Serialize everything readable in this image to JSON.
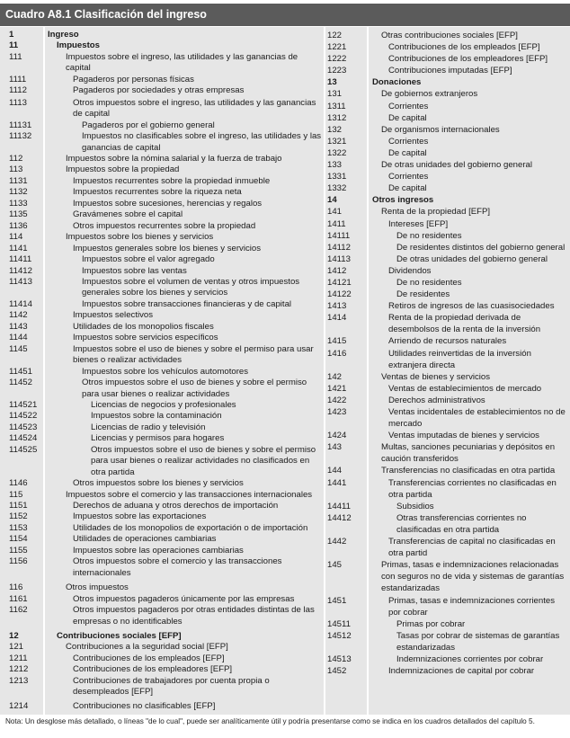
{
  "title": "Cuadro A8.1 Clasificación del ingreso",
  "note": "Nota: Un desglose más detallado, o líneas \"de lo cual\", puede ser analíticamente útil y podría presentarse como se indica en los cuadros detallados del capítulo 5.",
  "colors": {
    "header": "#5b5b5b",
    "body": "#e6e6e6",
    "divider": "#ffffff"
  },
  "left_rows": [
    {
      "code": "1",
      "text": "Ingreso"
    },
    {
      "code": "11",
      "text": "Impuestos"
    },
    {
      "code": "111",
      "text": "Impuestos sobre el ingreso, las utilidades y las ganancias de capital"
    },
    {
      "code": "1111",
      "text": "Pagaderos por personas físicas"
    },
    {
      "code": "1112",
      "text": "Pagaderos por sociedades y otras empresas"
    },
    {
      "code": "1113",
      "text": "Otros impuestos sobre el ingreso, las utilidades y las ganancias de capital"
    },
    {
      "code": "11131",
      "text": "Pagaderos por el gobierno general"
    },
    {
      "code": "11132",
      "text": "Impuestos no clasificables sobre el ingreso, las utilidades y las ganancias de capital"
    },
    {
      "code": "112",
      "text": "Impuestos sobre la nómina salarial y la fuerza de trabajo"
    },
    {
      "code": "113",
      "text": "Impuestos sobre la propiedad"
    },
    {
      "code": "1131",
      "text": "Impuestos recurrentes sobre la propiedad inmueble"
    },
    {
      "code": "1132",
      "text": "Impuestos recurrentes sobre la riqueza neta"
    },
    {
      "code": "1133",
      "text": "Impuestos sobre sucesiones, herencias y regalos"
    },
    {
      "code": "1135",
      "text": "Gravámenes sobre el capital"
    },
    {
      "code": "1136",
      "text": "Otros impuestos recurrentes sobre la propiedad"
    },
    {
      "code": "114",
      "text": "Impuestos sobre los bienes y servicios"
    },
    {
      "code": "1141",
      "text": "Impuestos generales sobre los bienes y servicios"
    },
    {
      "code": "11411",
      "text": "Impuestos sobre el valor agregado"
    },
    {
      "code": "11412",
      "text": "Impuestos sobre las ventas"
    },
    {
      "code": "11413",
      "text": "Impuestos sobre el volumen de ventas y otros impuestos generales sobre los bienes y servicios"
    },
    {
      "code": "11414",
      "text": "Impuestos sobre transacciones financieras y de capital"
    },
    {
      "code": "1142",
      "text": "Impuestos selectivos"
    },
    {
      "code": "1143",
      "text": "Utilidades de los monopolios fiscales"
    },
    {
      "code": "1144",
      "text": "Impuestos sobre servicios específicos"
    },
    {
      "code": "1145",
      "text": "Impuestos sobre el uso de bienes y sobre el permiso para usar bienes o realizar actividades"
    },
    {
      "code": "11451",
      "text": "Impuestos sobre los vehículos automotores"
    },
    {
      "code": "11452",
      "text": "Otros impuestos sobre el uso de bienes y sobre el permiso para usar bienes o realizar actividades"
    },
    {
      "code": "114521",
      "text": "Licencias de negocios y profesionales"
    },
    {
      "code": "114522",
      "text": "Impuestos sobre la contaminación"
    },
    {
      "code": "114523",
      "text": "Licencias de radio y televisión"
    },
    {
      "code": "114524",
      "text": "Licencias y permisos para hogares"
    },
    {
      "code": "114525",
      "text": "Otros impuestos sobre el uso de bienes y sobre el permiso para usar bienes o realizar actividades no clasificados en otra partida"
    },
    {
      "code": "1146",
      "text": "Otros impuestos sobre los bienes y servicios"
    },
    {
      "code": "115",
      "text": "Impuestos sobre el comercio y las transacciones internacionales"
    },
    {
      "code": "1151",
      "text": "Derechos de aduana y otros derechos de importación"
    },
    {
      "code": "1152",
      "text": "Impuestos sobre las exportaciones"
    },
    {
      "code": "1153",
      "text": "Utilidades de los monopolios de exportación o de importación"
    },
    {
      "code": "1154",
      "text": "Utilidades de operaciones cambiarias"
    },
    {
      "code": "1155",
      "text": "Impuestos sobre las operaciones cambiarias"
    },
    {
      "code": "1156",
      "text": "Otros impuestos sobre el comercio y las transacciones internacionales"
    },
    {
      "code": "116",
      "text": "Otros impuestos"
    },
    {
      "code": "1161",
      "text": "Otros impuestos pagaderos únicamente por las empresas"
    },
    {
      "code": "1162",
      "text": "Otros impuestos pagaderos por otras entidades distintas de las empresas o no identificables"
    },
    {
      "code": "12",
      "text": "Contribuciones sociales [EFP]"
    },
    {
      "code": "121",
      "text": "Contribuciones a la seguridad social [EFP]"
    },
    {
      "code": "1211",
      "text": "Contribuciones de los empleados [EFP]"
    },
    {
      "code": "1212",
      "text": "Contribuciones de los empleadores [EFP]"
    },
    {
      "code": "1213",
      "text": "Contribuciones de trabajadores por cuenta propia o desempleados [EFP]"
    },
    {
      "code": "1214",
      "text": "Contribuciones no clasificables [EFP]"
    }
  ],
  "right_rows": [
    {
      "code": "122",
      "text": "Otras contribuciones sociales [EFP]"
    },
    {
      "code": "1221",
      "text": "Contribuciones de los empleados [EFP]"
    },
    {
      "code": "1222",
      "text": "Contribuciones de los empleadores [EFP]"
    },
    {
      "code": "1223",
      "text": "Contribuciones imputadas [EFP]"
    },
    {
      "code": "13",
      "text": "Donaciones"
    },
    {
      "code": "131",
      "text": "De gobiernos extranjeros"
    },
    {
      "code": "1311",
      "text": "Corrientes"
    },
    {
      "code": "1312",
      "text": "De capital"
    },
    {
      "code": "132",
      "text": "De organismos internacionales"
    },
    {
      "code": "1321",
      "text": "Corrientes"
    },
    {
      "code": "1322",
      "text": "De capital"
    },
    {
      "code": "133",
      "text": "De otras unidades del gobierno general"
    },
    {
      "code": "1331",
      "text": "Corrientes"
    },
    {
      "code": "1332",
      "text": "De capital"
    },
    {
      "code": "14",
      "text": "Otros ingresos"
    },
    {
      "code": "141",
      "text": "Renta de la propiedad [EFP]"
    },
    {
      "code": "1411",
      "text": "Intereses [EFP]"
    },
    {
      "code": "14111",
      "text": "De no residentes"
    },
    {
      "code": "14112",
      "text": "De residentes distintos del gobierno general"
    },
    {
      "code": "14113",
      "text": "De otras unidades del gobierno general"
    },
    {
      "code": "1412",
      "text": "Dividendos"
    },
    {
      "code": "14121",
      "text": "De no residentes"
    },
    {
      "code": "14122",
      "text": "De residentes"
    },
    {
      "code": "1413",
      "text": "Retiros de ingresos de las cuasisociedades"
    },
    {
      "code": "1414",
      "text": "Renta de la propiedad derivada de desembolsos de la renta de la inversión"
    },
    {
      "code": "1415",
      "text": "Arriendo de recursos naturales"
    },
    {
      "code": "1416",
      "text": "Utilidades reinvertidas de la inversión extranjera directa"
    },
    {
      "code": "142",
      "text": "Ventas de bienes y servicios"
    },
    {
      "code": "1421",
      "text": "Ventas de establecimientos de mercado"
    },
    {
      "code": "1422",
      "text": "Derechos administrativos"
    },
    {
      "code": "1423",
      "text": "Ventas incidentales de establecimientos no de mercado"
    },
    {
      "code": "1424",
      "text": "Ventas imputadas de bienes y servicios"
    },
    {
      "code": "143",
      "text": "Multas, sanciones pecuniarias y depósitos en caución transferidos"
    },
    {
      "code": "144",
      "text": "Transferencias no clasificadas en otra partida"
    },
    {
      "code": "1441",
      "text": "Transferencias corrientes no clasificadas en otra partida"
    },
    {
      "code": "14411",
      "text": "Subsidios"
    },
    {
      "code": "14412",
      "text": "Otras transferencias corrientes no clasificadas en otra partida"
    },
    {
      "code": "1442",
      "text": "Transferencias de capital no clasificadas en otra partid"
    },
    {
      "code": "145",
      "text": "Primas, tasas e indemnizaciones relacionadas con seguros no de vida y sistemas de garantías estandarizadas"
    },
    {
      "code": "1451",
      "text": "Primas, tasas e indemnizaciones corrientes por cobrar"
    },
    {
      "code": "14511",
      "text": "Primas por cobrar"
    },
    {
      "code": "14512",
      "text": "Tasas por cobrar de sistemas de garantías estandarizadas"
    },
    {
      "code": "14513",
      "text": "Indemnizaciones corrientes por cobrar"
    },
    {
      "code": "1452",
      "text": "Indemnizaciones de capital por cobrar"
    }
  ]
}
